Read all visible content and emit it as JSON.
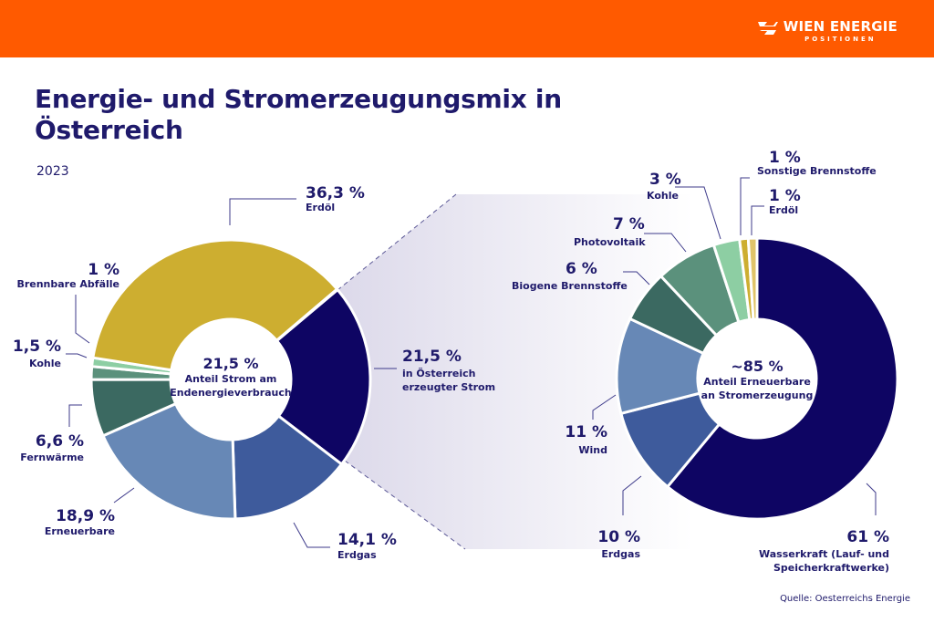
{
  "header": {
    "brand": "WIEN ENERGIE",
    "subbrand": "POSITIONEN",
    "brand_color": "#ff5a00"
  },
  "title": "Energie- und Stromerzeugungsmix in Österreich",
  "year": "2023",
  "source": "Quelle: Oesterreichs Energie",
  "chart_data": [
    {
      "type": "pie",
      "variant": "donut",
      "center_value": "21,5 %",
      "center_label": "Anteil Strom am Endenergieverbrauch",
      "slices": [
        {
          "label": "in Österreich erzeugter Strom",
          "value": 21.5,
          "display": "21,5 %",
          "color": "#0e0563"
        },
        {
          "label": "Erdgas",
          "value": 14.1,
          "display": "14,1 %",
          "color": "#3e5b9c"
        },
        {
          "label": "Erneuerbare",
          "value": 18.9,
          "display": "18,9 %",
          "color": "#6788b6"
        },
        {
          "label": "Fernwärme",
          "value": 6.6,
          "display": "6,6 %",
          "color": "#3b6961"
        },
        {
          "label": "Kohle",
          "value": 1.5,
          "display": "1,5 %",
          "color": "#5b917c"
        },
        {
          "label": "Brennbare Abfälle",
          "value": 1,
          "display": "1 %",
          "color": "#8dcea3"
        },
        {
          "label": "Erdöl",
          "value": 36.3,
          "display": "36,3 %",
          "color": "#cdae30"
        }
      ]
    },
    {
      "type": "pie",
      "variant": "donut",
      "center_value": "~85 %",
      "center_label": "Anteil Erneuerbare an Stromerzeugung",
      "slices": [
        {
          "label": "Wasserkraft (Lauf- und Speicherkraftwerke)",
          "value": 61,
          "display": "61 %",
          "color": "#0e0563"
        },
        {
          "label": "Erdgas",
          "value": 10,
          "display": "10 %",
          "color": "#3e5b9c"
        },
        {
          "label": "Wind",
          "value": 11,
          "display": "11 %",
          "color": "#6788b6"
        },
        {
          "label": "Biogene Brennstoffe",
          "value": 6,
          "display": "6 %",
          "color": "#3b6961"
        },
        {
          "label": "Photovoltaik",
          "value": 7,
          "display": "7 %",
          "color": "#5b917c"
        },
        {
          "label": "Kohle",
          "value": 3,
          "display": "3 %",
          "color": "#8dcea3"
        },
        {
          "label": "Sonstige Brennstoffe",
          "value": 1,
          "display": "1 %",
          "color": "#cdae30"
        },
        {
          "label": "Erdöl",
          "value": 1,
          "display": "1 %",
          "color": "#e0c46a"
        }
      ]
    }
  ]
}
